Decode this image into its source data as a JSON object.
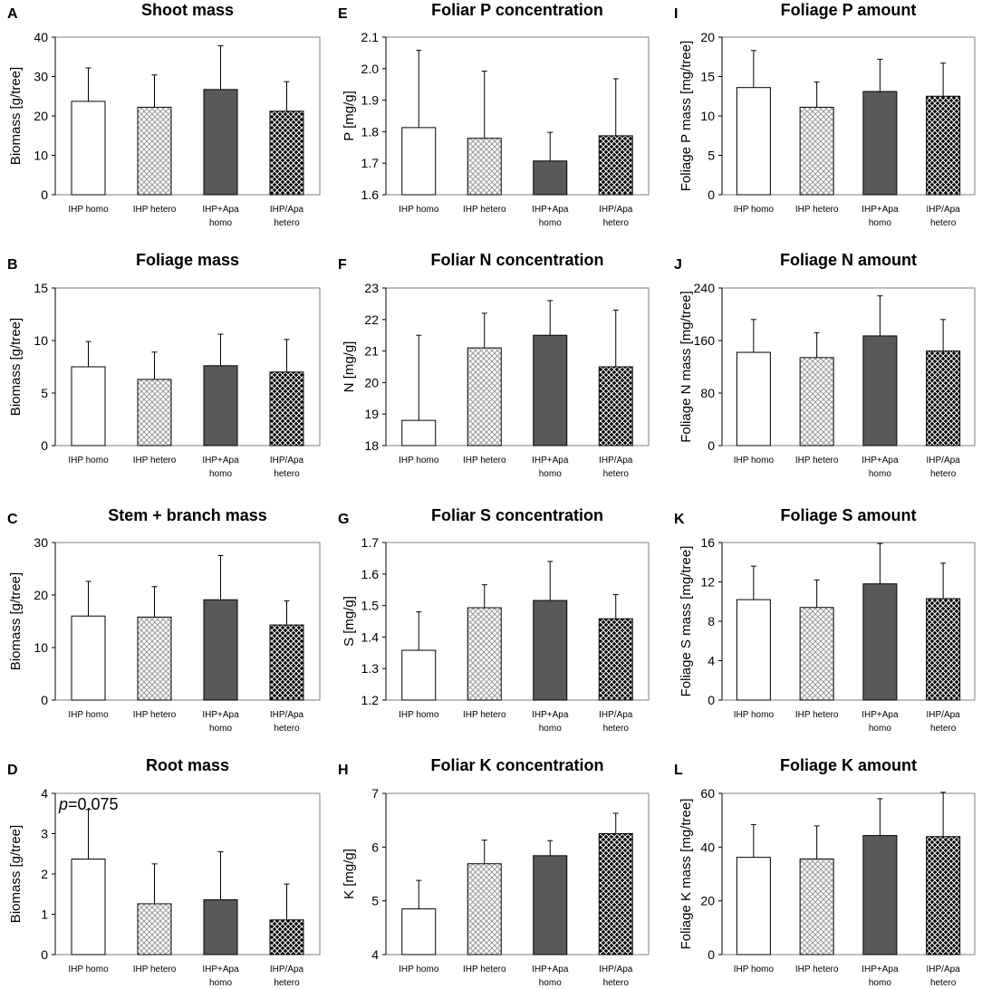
{
  "figure": {
    "categories": [
      "IHP homo",
      "IHP hetero",
      "IHP+Apa homo",
      "IHP/Apa hetero"
    ],
    "fills": {
      "homo_ihp": "#ffffff",
      "hetero_ihp": "#d9d9d9",
      "homo_apa": "#595959",
      "hetero_apa": "#000000"
    },
    "axis_color": "#000000",
    "frame_color": "#7f7f7f"
  },
  "chart_data": [
    {
      "letter": "A",
      "type": "bar",
      "title": "Shoot mass",
      "ylabel": "Biomass [g/tree]",
      "ylim": [
        0,
        40
      ],
      "yticks": [
        0,
        10,
        20,
        30,
        40
      ],
      "tick_labels": [
        "0",
        "10",
        "20",
        "30",
        "40"
      ],
      "values": [
        23.7,
        22.2,
        26.7,
        21.2
      ],
      "errors": [
        8.5,
        8.2,
        11.1,
        7.5
      ]
    },
    {
      "letter": "E",
      "type": "bar",
      "title": "Foliar P concentration",
      "ylabel": "P  [mg/g]",
      "ylim": [
        1.6,
        2.1
      ],
      "yticks": [
        1.6,
        1.7,
        1.8,
        1.9,
        2.0,
        2.1
      ],
      "tick_labels": [
        "1.6",
        "1.7",
        "1.8",
        "1.9",
        "2.0",
        "2.1"
      ],
      "values": [
        1.813,
        1.779,
        1.707,
        1.787
      ],
      "errors": [
        0.245,
        0.213,
        0.091,
        0.181
      ]
    },
    {
      "letter": "I",
      "type": "bar",
      "title": "Foliage P amount",
      "ylabel": "Foliage P mass [mg/tree]",
      "ylim": [
        0,
        20
      ],
      "yticks": [
        0,
        5,
        10,
        15,
        20
      ],
      "tick_labels": [
        "0",
        "5",
        "10",
        "15",
        "20"
      ],
      "values": [
        13.6,
        11.1,
        13.1,
        12.5
      ],
      "errors": [
        4.7,
        3.2,
        4.1,
        4.2
      ]
    },
    {
      "letter": "B",
      "type": "bar",
      "title": "Foliage mass",
      "ylabel": "Biomass [g/tree]",
      "ylim": [
        0,
        15
      ],
      "yticks": [
        0,
        5,
        10,
        15
      ],
      "tick_labels": [
        "0",
        "5",
        "10",
        "15"
      ],
      "values": [
        7.5,
        6.3,
        7.6,
        7.0
      ],
      "errors": [
        2.4,
        2.6,
        3.0,
        3.1
      ]
    },
    {
      "letter": "F",
      "type": "bar",
      "title": "Foliar N concentration",
      "ylabel": "N  [mg/g]",
      "ylim": [
        18,
        23
      ],
      "yticks": [
        18,
        19,
        20,
        21,
        22,
        23
      ],
      "tick_labels": [
        "18",
        "19",
        "20",
        "21",
        "22",
        "23"
      ],
      "values": [
        18.8,
        21.1,
        21.5,
        20.5
      ],
      "errors": [
        2.7,
        1.1,
        1.1,
        1.8
      ]
    },
    {
      "letter": "J",
      "type": "bar",
      "title": "Foliage N amount",
      "ylabel": "Foliage N mass [mg/tree]",
      "ylim": [
        0,
        240
      ],
      "yticks": [
        0,
        80,
        160,
        240
      ],
      "tick_labels": [
        "0",
        "80",
        "160",
        "240"
      ],
      "values": [
        142,
        134,
        167,
        144
      ],
      "errors": [
        50,
        38,
        61,
        48
      ]
    },
    {
      "letter": "C",
      "type": "bar",
      "title": "Stem + branch mass",
      "ylabel": "Biomass [g/tree]",
      "ylim": [
        0,
        30
      ],
      "yticks": [
        0,
        10,
        20,
        30
      ],
      "tick_labels": [
        "0",
        "10",
        "20",
        "30"
      ],
      "values": [
        16.0,
        15.8,
        19.1,
        14.3
      ],
      "errors": [
        6.6,
        5.8,
        8.4,
        4.6
      ]
    },
    {
      "letter": "G",
      "type": "bar",
      "title": "Foliar S concentration",
      "ylabel": "S [mg/g]",
      "ylim": [
        1.2,
        1.7
      ],
      "yticks": [
        1.2,
        1.3,
        1.4,
        1.5,
        1.6,
        1.7
      ],
      "tick_labels": [
        "1.2",
        "1.3",
        "1.4",
        "1.5",
        "1.6",
        "1.7"
      ],
      "values": [
        1.358,
        1.493,
        1.516,
        1.458
      ],
      "errors": [
        0.122,
        0.073,
        0.124,
        0.077
      ]
    },
    {
      "letter": "K",
      "type": "bar",
      "title": "Foliage S amount",
      "ylabel": "Foliage S mass  [mg/tree]",
      "ylim": [
        0,
        16
      ],
      "yticks": [
        0,
        4,
        8,
        12,
        16
      ],
      "tick_labels": [
        "0",
        "4",
        "8",
        "12",
        "16"
      ],
      "values": [
        10.2,
        9.4,
        11.8,
        10.3
      ],
      "errors": [
        3.4,
        2.8,
        4.1,
        3.6
      ]
    },
    {
      "letter": "D",
      "type": "bar",
      "title": "Root mass",
      "ylabel": "Biomass [g/tree]",
      "ylim": [
        0,
        4
      ],
      "yticks": [
        0,
        1,
        2,
        3,
        4
      ],
      "tick_labels": [
        "0",
        "1",
        "2",
        "3",
        "4"
      ],
      "values": [
        2.37,
        1.26,
        1.36,
        0.86
      ],
      "errors": [
        1.23,
        0.99,
        1.19,
        0.89
      ],
      "annotation": {
        "italic": "p",
        "text": "=0.075"
      }
    },
    {
      "letter": "H",
      "type": "bar",
      "title": "Foliar K concentration",
      "ylabel": "K  [mg/g]",
      "ylim": [
        4,
        7
      ],
      "yticks": [
        4,
        5,
        6,
        7
      ],
      "tick_labels": [
        "4",
        "5",
        "6",
        "7"
      ],
      "values": [
        4.85,
        5.69,
        5.84,
        6.25
      ],
      "errors": [
        0.53,
        0.44,
        0.28,
        0.38
      ]
    },
    {
      "letter": "L",
      "type": "bar",
      "title": "Foliage K amount",
      "ylabel": "Foliage K mass [mg/tree]",
      "ylim": [
        0,
        60
      ],
      "yticks": [
        0,
        20,
        40,
        60
      ],
      "tick_labels": [
        "0",
        "20",
        "40",
        "60"
      ],
      "values": [
        36.2,
        35.6,
        44.3,
        43.9
      ],
      "errors": [
        12.2,
        12.3,
        13.7,
        16.5
      ]
    }
  ]
}
